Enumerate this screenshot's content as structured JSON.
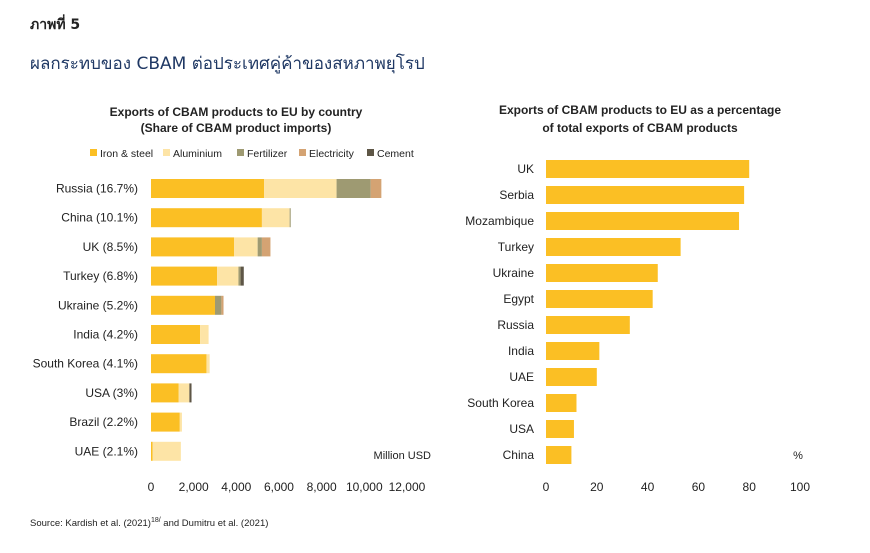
{
  "figure_label": "ภาพที่ 5",
  "figure_title": "ผลกระทบของ CBAM ต่อประเทศคู่ค้าของสหภาพยุโรป",
  "source": {
    "text": "Source: Kardish et al. (2021)",
    "sup": "18/",
    "rest": " and Dumitru et al. (2021)"
  },
  "colors": {
    "iron": "#FBBF24",
    "aluminium": "#FDE4A6",
    "fertilizer": "#9E9A72",
    "electricity": "#D4A373",
    "cement": "#5E5646",
    "bar2": "#FBBF24"
  },
  "chart_data": [
    {
      "type": "bar",
      "orientation": "horizontal",
      "stacked": true,
      "title": "Exports of CBAM products to EU by country",
      "subtitle": "(Share of CBAM product imports)",
      "unit_label": "Million USD",
      "legend_position": "top",
      "categories": [
        "Russia (16.7%)",
        "China (10.1%)",
        "UK (8.5%)",
        "Turkey (6.8%)",
        "Ukraine (5.2%)",
        "India (4.2%)",
        "South Korea (4.1%)",
        "USA (3%)",
        "Brazil (2.2%)",
        "UAE (2.1%)"
      ],
      "series": [
        {
          "name": "Iron & steel",
          "values": [
            5300,
            5200,
            3900,
            3100,
            3000,
            2300,
            2600,
            1300,
            1350,
            80
          ]
        },
        {
          "name": "Aluminium",
          "values": [
            3400,
            1300,
            1100,
            1000,
            0,
            400,
            150,
            500,
            100,
            1320
          ]
        },
        {
          "name": "Fertilizer",
          "values": [
            1600,
            50,
            200,
            100,
            300,
            0,
            0,
            0,
            0,
            0
          ]
        },
        {
          "name": "Electricity",
          "values": [
            500,
            0,
            400,
            0,
            100,
            0,
            0,
            0,
            0,
            0
          ]
        },
        {
          "name": "Cement",
          "values": [
            0,
            0,
            0,
            150,
            0,
            0,
            0,
            100,
            0,
            0
          ]
        }
      ],
      "xlim": [
        0,
        12000
      ],
      "xticks": [
        "0",
        "2,000",
        "4,000",
        "6,000",
        "8,000",
        "10,000",
        "12,000"
      ]
    },
    {
      "type": "bar",
      "orientation": "horizontal",
      "title": "Exports of CBAM products to EU as a percentage",
      "subtitle": "of total exports of CBAM products",
      "unit_label": "%",
      "categories": [
        "UK",
        "Serbia",
        "Mozambique",
        "Turkey",
        "Ukraine",
        "Egypt",
        "Russia",
        "India",
        "UAE",
        "South Korea",
        "USA",
        "China"
      ],
      "values": [
        80,
        78,
        76,
        53,
        44,
        42,
        33,
        21,
        20,
        12,
        11,
        10
      ],
      "xlim": [
        0,
        100
      ],
      "xticks": [
        "0",
        "20",
        "40",
        "60",
        "80",
        "100"
      ]
    }
  ]
}
